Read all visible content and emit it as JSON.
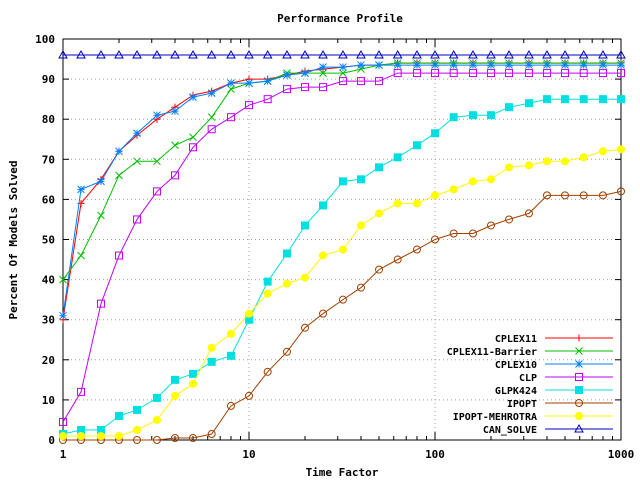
{
  "chart_data": {
    "type": "line",
    "title": "Performance Profile",
    "xlabel": "Time Factor",
    "ylabel": "Percent Of Models Solved",
    "xscale": "log",
    "xlim": [
      1,
      1000
    ],
    "ylim": [
      0,
      100
    ],
    "x_ticks": [
      "1",
      "10",
      "100",
      "1000"
    ],
    "y_ticks": [
      "0",
      "10",
      "20",
      "30",
      "40",
      "50",
      "60",
      "70",
      "80",
      "90",
      "100"
    ],
    "grid": true,
    "legend_position": "bottom-right",
    "series": [
      {
        "name": "CPLEX11",
        "color": "#ff0000",
        "marker": "plus",
        "x": [
          1,
          1.25,
          1.6,
          2,
          2.5,
          3.2,
          4,
          5,
          6.3,
          8,
          10,
          12.6,
          16,
          20,
          25,
          32,
          40,
          50,
          63,
          80,
          100,
          126,
          160,
          200,
          250,
          320,
          400,
          500,
          630,
          800,
          1000
        ],
        "y": [
          30,
          59,
          65,
          72,
          76,
          80,
          83,
          86,
          87,
          89,
          90,
          90,
          91,
          92,
          92.5,
          93,
          93.5,
          93.5,
          94,
          94,
          94,
          94,
          94,
          94,
          94,
          94,
          94,
          94,
          94,
          94,
          94
        ]
      },
      {
        "name": "CPLEX11-Barrier",
        "color": "#00c000",
        "marker": "x",
        "x": [
          1,
          1.25,
          1.6,
          2,
          2.5,
          3.2,
          4,
          5,
          6.3,
          8,
          10,
          12.6,
          16,
          20,
          25,
          32,
          40,
          50,
          63,
          80,
          100,
          126,
          160,
          200,
          250,
          320,
          400,
          500,
          630,
          800,
          1000
        ],
        "y": [
          40,
          46,
          56,
          66,
          69.5,
          69.5,
          73.5,
          75.5,
          80.5,
          87.5,
          89,
          89.5,
          91.5,
          91.5,
          91.5,
          91.5,
          92.5,
          93.5,
          94,
          94,
          94,
          94,
          94,
          94,
          94,
          94,
          94,
          94,
          94,
          94,
          94
        ]
      },
      {
        "name": "CPLEX10",
        "color": "#0080ff",
        "marker": "star",
        "x": [
          1,
          1.25,
          1.6,
          2,
          2.5,
          3.2,
          4,
          5,
          6.3,
          8,
          10,
          12.6,
          16,
          20,
          25,
          32,
          40,
          50,
          63,
          80,
          100,
          126,
          160,
          200,
          250,
          320,
          400,
          500,
          630,
          800,
          1000
        ],
        "y": [
          31,
          62.5,
          64.5,
          72,
          76.5,
          81,
          82,
          85.5,
          86.5,
          89,
          89,
          89.5,
          91,
          91.5,
          93,
          93,
          93.5,
          93.5,
          93.5,
          93.5,
          93.5,
          93.5,
          93.5,
          93.5,
          93.5,
          93.5,
          93.5,
          93.5,
          93.5,
          93.5,
          93.5
        ]
      },
      {
        "name": "CLP",
        "color": "#c000ff",
        "marker": "square-open",
        "x": [
          1,
          1.25,
          1.6,
          2,
          2.5,
          3.2,
          4,
          5,
          6.3,
          8,
          10,
          12.6,
          16,
          20,
          25,
          32,
          40,
          50,
          63,
          80,
          100,
          126,
          160,
          200,
          250,
          320,
          400,
          500,
          630,
          800,
          1000
        ],
        "y": [
          4.5,
          12,
          34,
          46,
          55,
          62,
          66,
          73,
          77.5,
          80.5,
          83.5,
          85,
          87.5,
          88,
          88,
          89.5,
          89.5,
          89.5,
          91.5,
          91.5,
          91.5,
          91.5,
          91.5,
          91.5,
          91.5,
          91.5,
          91.5,
          91.5,
          91.5,
          91.5,
          91.5
        ]
      },
      {
        "name": "GLPK424",
        "color": "#00e0e0",
        "marker": "square-filled",
        "x": [
          1,
          1.25,
          1.6,
          2,
          2.5,
          3.2,
          4,
          5,
          6.3,
          8,
          10,
          12.6,
          16,
          20,
          25,
          32,
          40,
          50,
          63,
          80,
          100,
          126,
          160,
          200,
          250,
          320,
          400,
          500,
          630,
          800,
          1000
        ],
        "y": [
          1.5,
          2.5,
          2.5,
          6,
          7.5,
          10.5,
          15,
          16.5,
          19.5,
          21,
          30,
          39.5,
          46.5,
          53.5,
          58.5,
          64.5,
          65,
          68,
          70.5,
          73.5,
          76.5,
          80.5,
          81,
          81,
          83,
          84,
          85,
          85,
          85,
          85,
          85
        ]
      },
      {
        "name": "IPOPT",
        "color": "#a04000",
        "marker": "circle-open",
        "x": [
          1,
          1.25,
          1.6,
          2,
          2.5,
          3.2,
          4,
          5,
          6.3,
          8,
          10,
          12.6,
          16,
          20,
          25,
          32,
          40,
          50,
          63,
          80,
          100,
          126,
          160,
          200,
          250,
          320,
          400,
          500,
          630,
          800,
          1000
        ],
        "y": [
          0,
          0,
          0,
          0,
          0,
          0,
          0.5,
          0.5,
          1.5,
          8.5,
          11,
          17,
          22,
          28,
          31.5,
          35,
          38,
          42.5,
          45,
          47.5,
          50,
          51.5,
          51.5,
          53.5,
          55,
          56.5,
          61,
          61,
          61,
          61,
          62
        ]
      },
      {
        "name": "IPOPT-MEHROTRA",
        "color": "#ffff00",
        "marker": "circle-filled",
        "x": [
          1,
          1.25,
          1.6,
          2,
          2.5,
          3.2,
          4,
          5,
          6.3,
          8,
          10,
          12.6,
          16,
          20,
          25,
          32,
          40,
          50,
          63,
          80,
          100,
          126,
          160,
          200,
          250,
          320,
          400,
          500,
          630,
          800,
          1000
        ],
        "y": [
          1,
          1,
          1,
          1,
          2.5,
          5,
          11,
          14,
          23,
          26.5,
          31.5,
          36.5,
          39,
          40.5,
          46,
          47.5,
          53.5,
          56.5,
          59,
          59,
          61,
          62.5,
          64.5,
          65,
          68,
          68.5,
          69.5,
          69.5,
          70.5,
          72,
          72.5
        ]
      },
      {
        "name": "CAN_SOLVE",
        "color": "#0000c0",
        "marker": "triangle-open",
        "x": [
          1,
          1.25,
          1.6,
          2,
          2.5,
          3.2,
          4,
          5,
          6.3,
          8,
          10,
          12.6,
          16,
          20,
          25,
          32,
          40,
          50,
          63,
          80,
          100,
          126,
          160,
          200,
          250,
          320,
          400,
          500,
          630,
          800,
          1000
        ],
        "y": [
          96,
          96,
          96,
          96,
          96,
          96,
          96,
          96,
          96,
          96,
          96,
          96,
          96,
          96,
          96,
          96,
          96,
          96,
          96,
          96,
          96,
          96,
          96,
          96,
          96,
          96,
          96,
          96,
          96,
          96,
          96
        ]
      }
    ]
  }
}
